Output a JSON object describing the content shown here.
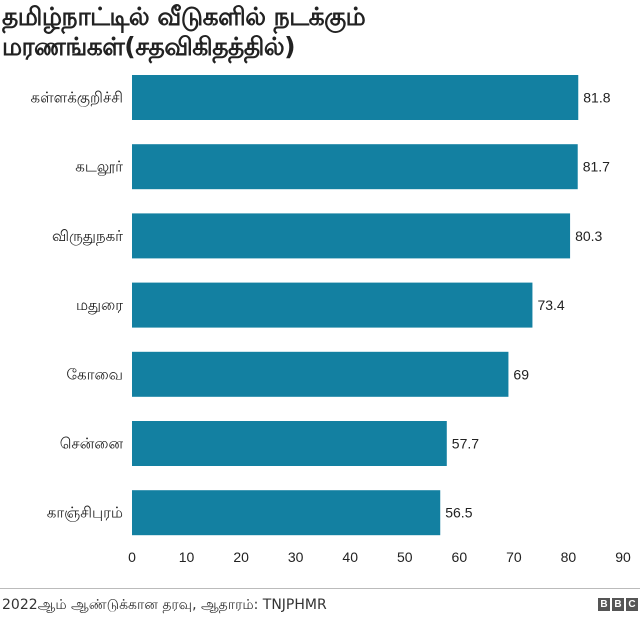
{
  "chart_data": {
    "type": "bar",
    "orientation": "horizontal",
    "title": "தமிழ்நாட்டில் வீடுகளில் நடக்கும் மரணங்கள்(சதவிகிதத்தில்)",
    "categories": [
      "கள்ளக்குறிச்சி",
      "கடலூர்",
      "விருதுநகர்",
      "மதுரை",
      "கோவை",
      "சென்னை",
      "காஞ்சிபுரம்"
    ],
    "values": [
      81.8,
      81.7,
      80.3,
      73.4,
      69,
      57.7,
      56.5
    ],
    "data_labels": [
      "81.8",
      "81.7",
      "80.3",
      "73.4",
      "69",
      "57.7",
      "56.5"
    ],
    "xlim": [
      0,
      90
    ],
    "xticks": [
      "0",
      "10",
      "20",
      "30",
      "40",
      "50",
      "60",
      "70",
      "80",
      "90"
    ],
    "grid": false,
    "bar_color": "#1380a1"
  },
  "footer": {
    "source": "2022ஆம் ஆண்டுக்கான தரவு, ஆதாரம்: TNJPHMR",
    "logo": [
      "B",
      "B",
      "C"
    ]
  }
}
